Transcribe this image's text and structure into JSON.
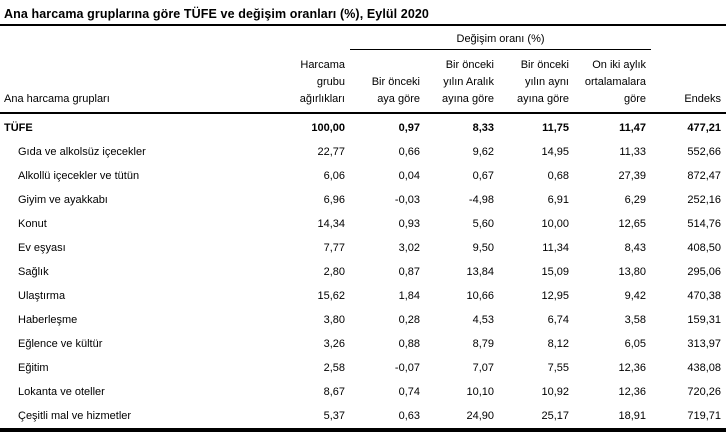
{
  "title": "Ana harcama gruplarına göre TÜFE ve değişim oranları (%), Eylül 2020",
  "table": {
    "group_header": "Değişim oranı (%)",
    "columns": {
      "main": "Ana harcama grupları",
      "weight": "Harcama\ngrubu\nağırlıkları",
      "monthly": "Bir önceki\naya göre",
      "since_december": "Bir önceki\nyılın Aralık\nayına göre",
      "same_month_prev_year": "Bir önceki\nyılın aynı\nayına göre",
      "twelve_month_avg": "On iki aylık\nortalamalara\ngöre",
      "index": "Endeks"
    },
    "rows": [
      {
        "label": "TÜFE",
        "weight": "100,00",
        "monthly": "0,97",
        "since_december": "8,33",
        "same_month_prev_year": "11,75",
        "twelve_month_avg": "11,47",
        "index": "477,21"
      },
      {
        "label": "Gıda ve alkolsüz içecekler",
        "weight": "22,77",
        "monthly": "0,66",
        "since_december": "9,62",
        "same_month_prev_year": "14,95",
        "twelve_month_avg": "11,33",
        "index": "552,66"
      },
      {
        "label": "Alkollü içecekler ve tütün",
        "weight": "6,06",
        "monthly": "0,04",
        "since_december": "0,67",
        "same_month_prev_year": "0,68",
        "twelve_month_avg": "27,39",
        "index": "872,47"
      },
      {
        "label": "Giyim ve ayakkabı",
        "weight": "6,96",
        "monthly": "-0,03",
        "since_december": "-4,98",
        "same_month_prev_year": "6,91",
        "twelve_month_avg": "6,29",
        "index": "252,16"
      },
      {
        "label": "Konut",
        "weight": "14,34",
        "monthly": "0,93",
        "since_december": "5,60",
        "same_month_prev_year": "10,00",
        "twelve_month_avg": "12,65",
        "index": "514,76"
      },
      {
        "label": "Ev eşyası",
        "weight": "7,77",
        "monthly": "3,02",
        "since_december": "9,50",
        "same_month_prev_year": "11,34",
        "twelve_month_avg": "8,43",
        "index": "408,50"
      },
      {
        "label": "Sağlık",
        "weight": "2,80",
        "monthly": "0,87",
        "since_december": "13,84",
        "same_month_prev_year": "15,09",
        "twelve_month_avg": "13,80",
        "index": "295,06"
      },
      {
        "label": "Ulaştırma",
        "weight": "15,62",
        "monthly": "1,84",
        "since_december": "10,66",
        "same_month_prev_year": "12,95",
        "twelve_month_avg": "9,42",
        "index": "470,38"
      },
      {
        "label": "Haberleşme",
        "weight": "3,80",
        "monthly": "0,28",
        "since_december": "4,53",
        "same_month_prev_year": "6,74",
        "twelve_month_avg": "3,58",
        "index": "159,31"
      },
      {
        "label": "Eğlence ve kültür",
        "weight": "3,26",
        "monthly": "0,88",
        "since_december": "8,79",
        "same_month_prev_year": "8,12",
        "twelve_month_avg": "6,05",
        "index": "313,97"
      },
      {
        "label": "Eğitim",
        "weight": "2,58",
        "monthly": "-0,07",
        "since_december": "7,07",
        "same_month_prev_year": "7,55",
        "twelve_month_avg": "12,36",
        "index": "438,08"
      },
      {
        "label": "Lokanta ve oteller",
        "weight": "8,67",
        "monthly": "0,74",
        "since_december": "10,10",
        "same_month_prev_year": "10,92",
        "twelve_month_avg": "12,36",
        "index": "720,26"
      },
      {
        "label": "Çeşitli mal ve hizmetler",
        "weight": "5,37",
        "monthly": "0,63",
        "since_december": "24,90",
        "same_month_prev_year": "25,17",
        "twelve_month_avg": "18,91",
        "index": "719,71"
      }
    ]
  }
}
